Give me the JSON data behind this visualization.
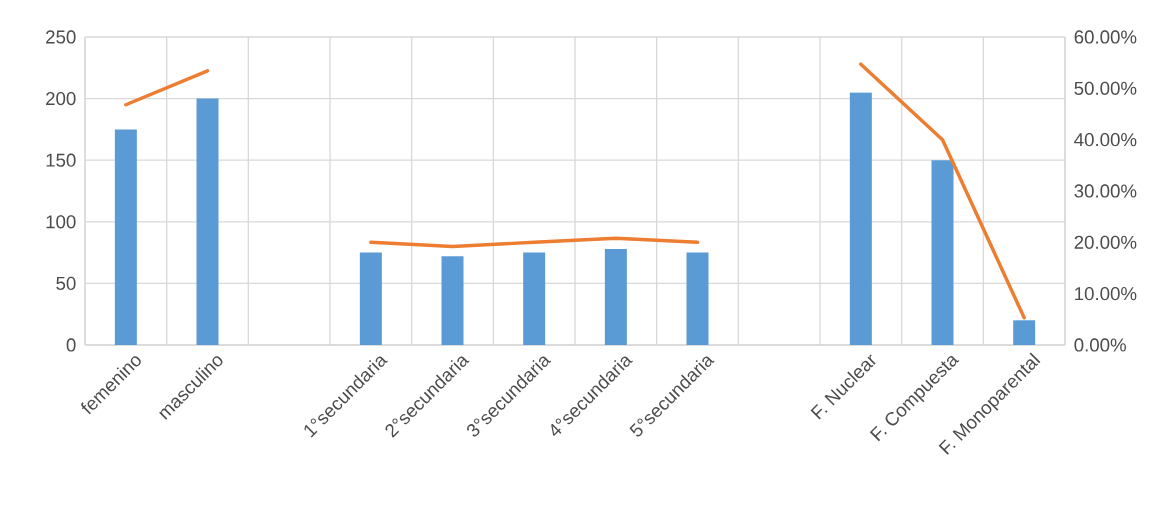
{
  "chart_data": {
    "type": "bar",
    "categories": [
      "femenino",
      "masculino",
      null,
      "1°secundaria",
      "2°secundaria",
      "3°secundaria",
      "4°secundaria",
      "5°secundaria",
      null,
      "F. Nuclear",
      "F. Compuesta",
      "F. Monoparental"
    ],
    "series": [
      {
        "color": "#5b9bd5",
        "values": [
          175,
          200,
          null,
          75,
          72,
          75,
          78,
          75,
          null,
          205,
          150,
          20
        ]
      },
      {
        "type": "line",
        "axis": "y2",
        "color": "#ed7d31",
        "values": [
          46.8,
          53.4,
          null,
          20.0,
          19.2,
          20.0,
          20.8,
          20.0,
          null,
          54.7,
          40.0,
          5.3
        ]
      }
    ],
    "ylim": [
      0,
      250
    ],
    "yticks": [
      0,
      50,
      100,
      150,
      200,
      250
    ],
    "y2lim": [
      0,
      60
    ],
    "y2ticks": [
      {
        "value": 0,
        "label": "0.00%"
      },
      {
        "value": 10,
        "label": "10.00%"
      },
      {
        "value": 20,
        "label": "20.00%"
      },
      {
        "value": 30,
        "label": "30.00%"
      },
      {
        "value": 40,
        "label": "40.00%"
      },
      {
        "value": 50,
        "label": "50.00%"
      },
      {
        "value": 60,
        "label": "60.00%"
      }
    ],
    "grid": true,
    "marker": "none",
    "line_style": "solid"
  }
}
